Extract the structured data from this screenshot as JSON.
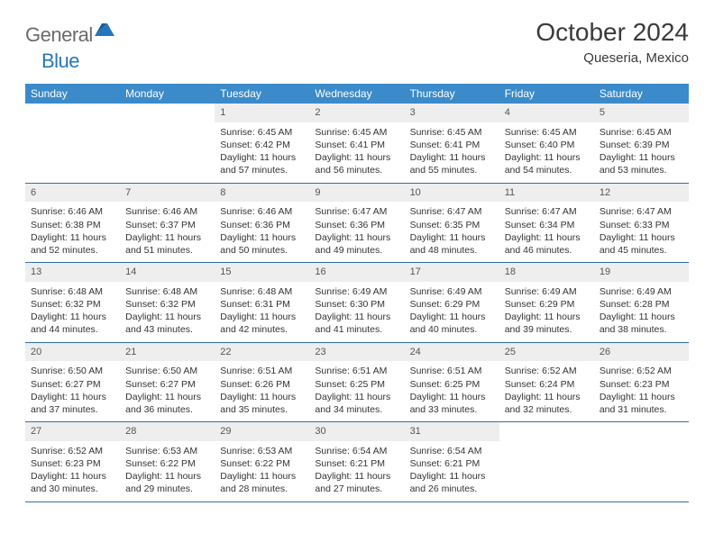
{
  "brand": {
    "part1": "General",
    "part2": "Blue"
  },
  "title": "October 2024",
  "location": "Queseria, Mexico",
  "colors": {
    "header_bg": "#3b8bca",
    "header_text": "#ffffff",
    "daynum_bg": "#eeeeee",
    "daynum_text": "#555555",
    "rule": "#2f6fa8",
    "body_text": "#333333",
    "logo_gray": "#6a6a6a",
    "logo_blue": "#2676bb"
  },
  "weekdays": [
    "Sunday",
    "Monday",
    "Tuesday",
    "Wednesday",
    "Thursday",
    "Friday",
    "Saturday"
  ],
  "weeks": [
    [
      null,
      null,
      {
        "n": "1",
        "sr": "Sunrise: 6:45 AM",
        "ss": "Sunset: 6:42 PM",
        "d1": "Daylight: 11 hours",
        "d2": "and 57 minutes."
      },
      {
        "n": "2",
        "sr": "Sunrise: 6:45 AM",
        "ss": "Sunset: 6:41 PM",
        "d1": "Daylight: 11 hours",
        "d2": "and 56 minutes."
      },
      {
        "n": "3",
        "sr": "Sunrise: 6:45 AM",
        "ss": "Sunset: 6:41 PM",
        "d1": "Daylight: 11 hours",
        "d2": "and 55 minutes."
      },
      {
        "n": "4",
        "sr": "Sunrise: 6:45 AM",
        "ss": "Sunset: 6:40 PM",
        "d1": "Daylight: 11 hours",
        "d2": "and 54 minutes."
      },
      {
        "n": "5",
        "sr": "Sunrise: 6:45 AM",
        "ss": "Sunset: 6:39 PM",
        "d1": "Daylight: 11 hours",
        "d2": "and 53 minutes."
      }
    ],
    [
      {
        "n": "6",
        "sr": "Sunrise: 6:46 AM",
        "ss": "Sunset: 6:38 PM",
        "d1": "Daylight: 11 hours",
        "d2": "and 52 minutes."
      },
      {
        "n": "7",
        "sr": "Sunrise: 6:46 AM",
        "ss": "Sunset: 6:37 PM",
        "d1": "Daylight: 11 hours",
        "d2": "and 51 minutes."
      },
      {
        "n": "8",
        "sr": "Sunrise: 6:46 AM",
        "ss": "Sunset: 6:36 PM",
        "d1": "Daylight: 11 hours",
        "d2": "and 50 minutes."
      },
      {
        "n": "9",
        "sr": "Sunrise: 6:47 AM",
        "ss": "Sunset: 6:36 PM",
        "d1": "Daylight: 11 hours",
        "d2": "and 49 minutes."
      },
      {
        "n": "10",
        "sr": "Sunrise: 6:47 AM",
        "ss": "Sunset: 6:35 PM",
        "d1": "Daylight: 11 hours",
        "d2": "and 48 minutes."
      },
      {
        "n": "11",
        "sr": "Sunrise: 6:47 AM",
        "ss": "Sunset: 6:34 PM",
        "d1": "Daylight: 11 hours",
        "d2": "and 46 minutes."
      },
      {
        "n": "12",
        "sr": "Sunrise: 6:47 AM",
        "ss": "Sunset: 6:33 PM",
        "d1": "Daylight: 11 hours",
        "d2": "and 45 minutes."
      }
    ],
    [
      {
        "n": "13",
        "sr": "Sunrise: 6:48 AM",
        "ss": "Sunset: 6:32 PM",
        "d1": "Daylight: 11 hours",
        "d2": "and 44 minutes."
      },
      {
        "n": "14",
        "sr": "Sunrise: 6:48 AM",
        "ss": "Sunset: 6:32 PM",
        "d1": "Daylight: 11 hours",
        "d2": "and 43 minutes."
      },
      {
        "n": "15",
        "sr": "Sunrise: 6:48 AM",
        "ss": "Sunset: 6:31 PM",
        "d1": "Daylight: 11 hours",
        "d2": "and 42 minutes."
      },
      {
        "n": "16",
        "sr": "Sunrise: 6:49 AM",
        "ss": "Sunset: 6:30 PM",
        "d1": "Daylight: 11 hours",
        "d2": "and 41 minutes."
      },
      {
        "n": "17",
        "sr": "Sunrise: 6:49 AM",
        "ss": "Sunset: 6:29 PM",
        "d1": "Daylight: 11 hours",
        "d2": "and 40 minutes."
      },
      {
        "n": "18",
        "sr": "Sunrise: 6:49 AM",
        "ss": "Sunset: 6:29 PM",
        "d1": "Daylight: 11 hours",
        "d2": "and 39 minutes."
      },
      {
        "n": "19",
        "sr": "Sunrise: 6:49 AM",
        "ss": "Sunset: 6:28 PM",
        "d1": "Daylight: 11 hours",
        "d2": "and 38 minutes."
      }
    ],
    [
      {
        "n": "20",
        "sr": "Sunrise: 6:50 AM",
        "ss": "Sunset: 6:27 PM",
        "d1": "Daylight: 11 hours",
        "d2": "and 37 minutes."
      },
      {
        "n": "21",
        "sr": "Sunrise: 6:50 AM",
        "ss": "Sunset: 6:27 PM",
        "d1": "Daylight: 11 hours",
        "d2": "and 36 minutes."
      },
      {
        "n": "22",
        "sr": "Sunrise: 6:51 AM",
        "ss": "Sunset: 6:26 PM",
        "d1": "Daylight: 11 hours",
        "d2": "and 35 minutes."
      },
      {
        "n": "23",
        "sr": "Sunrise: 6:51 AM",
        "ss": "Sunset: 6:25 PM",
        "d1": "Daylight: 11 hours",
        "d2": "and 34 minutes."
      },
      {
        "n": "24",
        "sr": "Sunrise: 6:51 AM",
        "ss": "Sunset: 6:25 PM",
        "d1": "Daylight: 11 hours",
        "d2": "and 33 minutes."
      },
      {
        "n": "25",
        "sr": "Sunrise: 6:52 AM",
        "ss": "Sunset: 6:24 PM",
        "d1": "Daylight: 11 hours",
        "d2": "and 32 minutes."
      },
      {
        "n": "26",
        "sr": "Sunrise: 6:52 AM",
        "ss": "Sunset: 6:23 PM",
        "d1": "Daylight: 11 hours",
        "d2": "and 31 minutes."
      }
    ],
    [
      {
        "n": "27",
        "sr": "Sunrise: 6:52 AM",
        "ss": "Sunset: 6:23 PM",
        "d1": "Daylight: 11 hours",
        "d2": "and 30 minutes."
      },
      {
        "n": "28",
        "sr": "Sunrise: 6:53 AM",
        "ss": "Sunset: 6:22 PM",
        "d1": "Daylight: 11 hours",
        "d2": "and 29 minutes."
      },
      {
        "n": "29",
        "sr": "Sunrise: 6:53 AM",
        "ss": "Sunset: 6:22 PM",
        "d1": "Daylight: 11 hours",
        "d2": "and 28 minutes."
      },
      {
        "n": "30",
        "sr": "Sunrise: 6:54 AM",
        "ss": "Sunset: 6:21 PM",
        "d1": "Daylight: 11 hours",
        "d2": "and 27 minutes."
      },
      {
        "n": "31",
        "sr": "Sunrise: 6:54 AM",
        "ss": "Sunset: 6:21 PM",
        "d1": "Daylight: 11 hours",
        "d2": "and 26 minutes."
      },
      null,
      null
    ]
  ]
}
